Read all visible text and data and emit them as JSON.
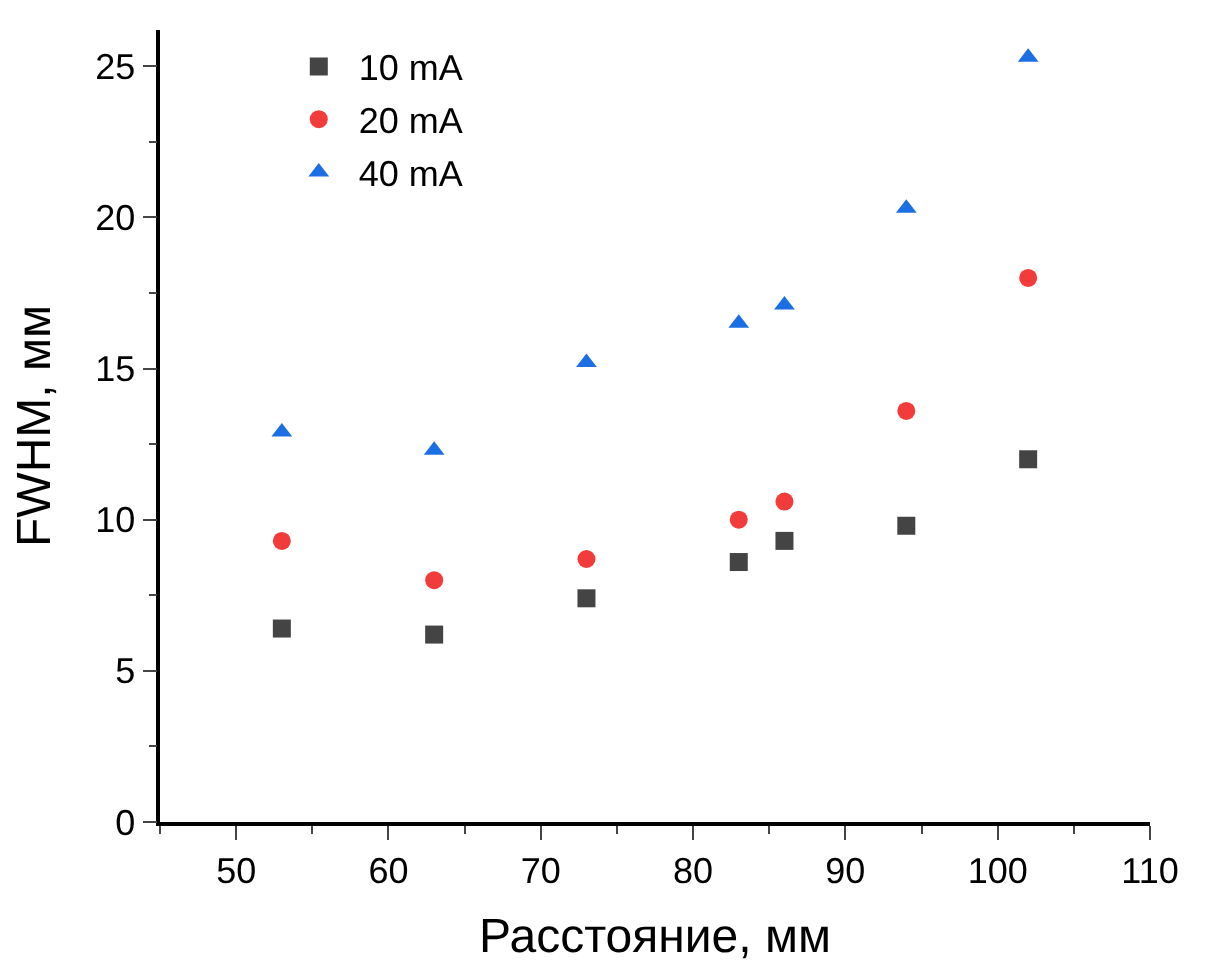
{
  "chart_data": {
    "type": "scatter",
    "xlabel": "Расстояние, мм",
    "ylabel": "FWHM, мм",
    "x": [
      53,
      63,
      73,
      83,
      86,
      94,
      102
    ],
    "series": [
      {
        "name": "10 mA",
        "color": "#444444",
        "marker": "square",
        "values": [
          6.4,
          6.2,
          7.4,
          8.6,
          9.3,
          9.8,
          12.0
        ]
      },
      {
        "name": "20 mA",
        "color": "#f23b3b",
        "marker": "circle",
        "values": [
          9.3,
          8.0,
          8.7,
          10.0,
          10.6,
          13.6,
          18.0
        ]
      },
      {
        "name": "40 mA",
        "color": "#1c6fe3",
        "marker": "triangle",
        "values": [
          12.9,
          12.3,
          15.2,
          16.5,
          17.1,
          20.3,
          25.3
        ]
      }
    ],
    "xlim": [
      45,
      110
    ],
    "xticks": [
      50,
      60,
      70,
      80,
      90,
      100,
      110
    ],
    "ylim": [
      0,
      26.2
    ],
    "yticks": [
      0,
      5,
      10,
      15,
      20,
      25
    ],
    "legend": "top left"
  }
}
